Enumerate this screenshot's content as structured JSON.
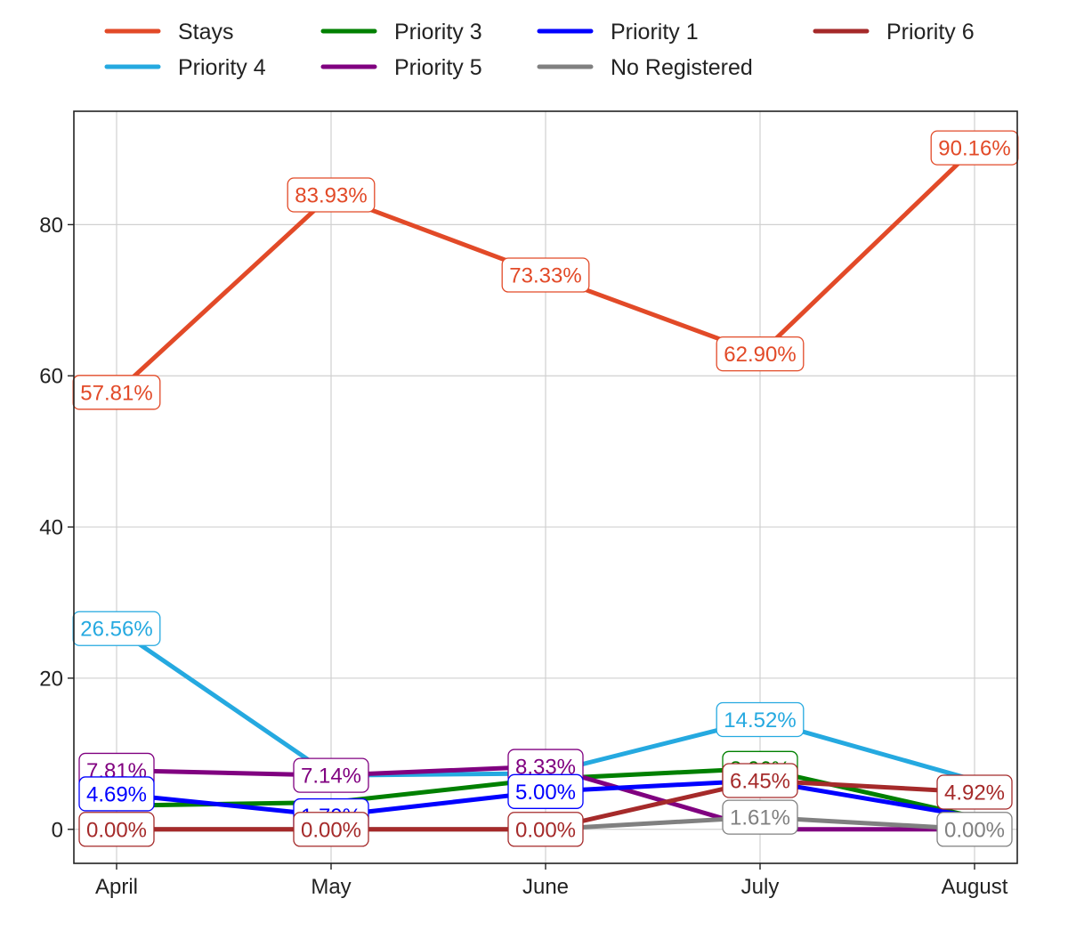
{
  "chart_data": {
    "type": "line",
    "title": "",
    "xlabel": "",
    "ylabel": "",
    "categories": [
      "April",
      "May",
      "June",
      "July",
      "August"
    ],
    "ylim": [
      -4.5,
      95
    ],
    "yticks": [
      0,
      20,
      40,
      60,
      80
    ],
    "grid": true,
    "legend": {
      "placement": "top-center, outside plot",
      "columns": 4,
      "order": [
        "Stays",
        "Priority 4",
        "Priority 3",
        "Priority 5",
        "Priority 1",
        "No Registered",
        "Priority 6"
      ]
    },
    "series": [
      {
        "name": "Stays",
        "color": "#e24a28",
        "values": [
          57.81,
          83.93,
          73.33,
          62.9,
          90.16
        ],
        "labels": [
          "57.81%",
          "83.93%",
          "73.33%",
          "62.90%",
          "90.16%"
        ]
      },
      {
        "name": "Priority 4",
        "color": "#25a9e0",
        "values": [
          26.56,
          7.14,
          7.4,
          14.52,
          6.5
        ],
        "labels": [
          "26.56%",
          "",
          "",
          "14.52%",
          ""
        ]
      },
      {
        "name": "Priority 3",
        "color": "#008000",
        "values": [
          3.13,
          3.57,
          6.67,
          8.06,
          1.64
        ],
        "labels": [
          "",
          "",
          "",
          "8.06%",
          ""
        ]
      },
      {
        "name": "Priority 5",
        "color": "#800080",
        "values": [
          7.81,
          7.14,
          8.33,
          0.0,
          0.0
        ],
        "labels": [
          "7.81%",
          "7.14%",
          "8.33%",
          "",
          ""
        ]
      },
      {
        "name": "Priority 1",
        "color": "#0000ff",
        "values": [
          4.69,
          1.79,
          5.0,
          6.45,
          1.64
        ],
        "labels": [
          "4.69%",
          "1.79%",
          "5.00%",
          "",
          ""
        ]
      },
      {
        "name": "No Registered",
        "color": "#808080",
        "values": [
          0.0,
          0.0,
          0.0,
          1.61,
          0.0
        ],
        "labels": [
          "",
          "",
          "",
          "1.61%",
          "0.00%"
        ]
      },
      {
        "name": "Priority 6",
        "color": "#a52a2a",
        "values": [
          0.0,
          0.0,
          0.0,
          6.45,
          4.92
        ],
        "labels": [
          "0.00%",
          "0.00%",
          "0.00%",
          "6.45%",
          "4.92%"
        ]
      }
    ]
  }
}
